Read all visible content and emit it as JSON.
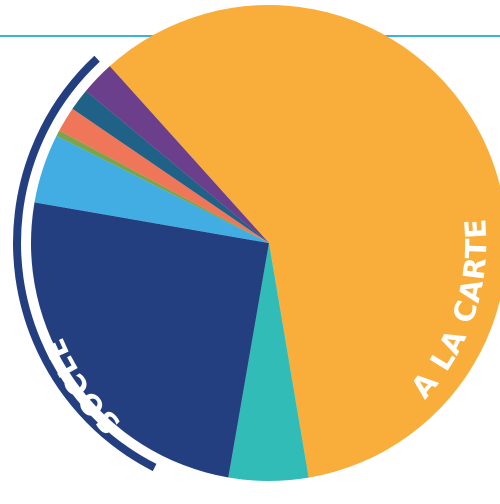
{
  "colors": {
    "top_rule": "#3bb4d9",
    "bracket": "#233f80",
    "background": "#ffffff"
  },
  "chart_data": {
    "type": "pie",
    "title": "",
    "start_angle_deg": -132,
    "direction": "clockwise",
    "slices": [
      {
        "value": 59.0,
        "color": "#f9ae3b"
      },
      {
        "value": 5.4,
        "color": "#31bcb7"
      },
      {
        "value": 25.0,
        "color": "#233f80"
      },
      {
        "value": 4.7,
        "color": "#41ade2"
      },
      {
        "value": 0.4,
        "color": "#7ba54a"
      },
      {
        "value": 1.7,
        "color": "#ef7659"
      },
      {
        "value": 1.5,
        "color": "#1f6187"
      },
      {
        "value": 2.3,
        "color": "#6b3f8c"
      }
    ],
    "annotations": {
      "a_la_carte": "A LA CARTE",
      "socle": "SOCLE"
    }
  }
}
